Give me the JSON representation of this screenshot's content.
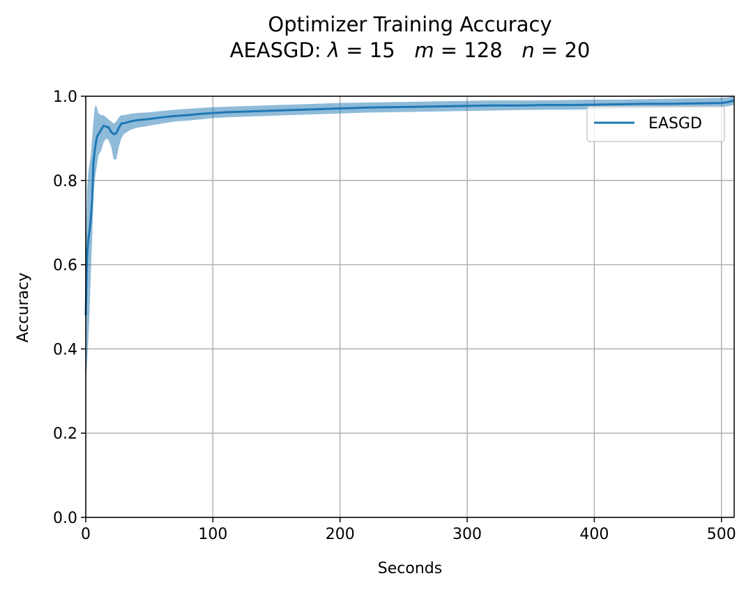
{
  "chart_data": {
    "type": "line",
    "title": "Optimizer Training Accuracy",
    "subtitle_parts": [
      {
        "text": "AEASGD: ",
        "italic": false
      },
      {
        "text": "λ",
        "italic": true
      },
      {
        "text": " = 15   ",
        "italic": false
      },
      {
        "text": "m",
        "italic": true
      },
      {
        "text": " = 128   ",
        "italic": false
      },
      {
        "text": "n",
        "italic": true
      },
      {
        "text": " = 20",
        "italic": false
      }
    ],
    "xlabel": "Seconds",
    "ylabel": "Accuracy",
    "xlim": [
      0,
      510
    ],
    "ylim": [
      0.0,
      1.0
    ],
    "xticks": [
      0,
      100,
      200,
      300,
      400,
      500
    ],
    "xtick_labels": [
      "0",
      "100",
      "200",
      "300",
      "400",
      "500"
    ],
    "yticks": [
      0.0,
      0.2,
      0.4,
      0.6,
      0.8,
      1.0
    ],
    "ytick_labels": [
      "0.0",
      "0.2",
      "0.4",
      "0.6",
      "0.8",
      "1.0"
    ],
    "grid": true,
    "legend_position": "top-right",
    "series": [
      {
        "name": "EASGD",
        "color": "#1f77b4",
        "band_color": "#1f77b4",
        "x": [
          0,
          1,
          2,
          3,
          4,
          5,
          6,
          7,
          8,
          9,
          10,
          12,
          14,
          16,
          18,
          20,
          22,
          24,
          26,
          28,
          30,
          35,
          40,
          50,
          60,
          70,
          80,
          90,
          100,
          110,
          120,
          130,
          140,
          150,
          160,
          170,
          180,
          190,
          200,
          220,
          240,
          260,
          280,
          300,
          320,
          340,
          360,
          380,
          400,
          420,
          440,
          460,
          480,
          500,
          505,
          510
        ],
        "y": [
          0.48,
          0.62,
          0.66,
          0.68,
          0.71,
          0.75,
          0.84,
          0.87,
          0.89,
          0.905,
          0.91,
          0.92,
          0.93,
          0.928,
          0.926,
          0.915,
          0.91,
          0.912,
          0.925,
          0.935,
          0.936,
          0.94,
          0.943,
          0.946,
          0.95,
          0.953,
          0.955,
          0.958,
          0.96,
          0.962,
          0.963,
          0.964,
          0.965,
          0.966,
          0.967,
          0.968,
          0.969,
          0.97,
          0.971,
          0.973,
          0.974,
          0.975,
          0.976,
          0.977,
          0.978,
          0.978,
          0.979,
          0.979,
          0.98,
          0.981,
          0.982,
          0.982,
          0.983,
          0.984,
          0.986,
          0.99
        ],
        "lower": [
          0.32,
          0.36,
          0.42,
          0.49,
          0.58,
          0.66,
          0.76,
          0.8,
          0.82,
          0.84,
          0.86,
          0.87,
          0.89,
          0.9,
          0.895,
          0.88,
          0.85,
          0.85,
          0.88,
          0.9,
          0.91,
          0.92,
          0.925,
          0.93,
          0.935,
          0.94,
          0.942,
          0.945,
          0.948,
          0.95,
          0.951,
          0.952,
          0.953,
          0.954,
          0.955,
          0.956,
          0.957,
          0.958,
          0.959,
          0.961,
          0.962,
          0.963,
          0.964,
          0.965,
          0.966,
          0.967,
          0.968,
          0.968,
          0.969,
          0.97,
          0.971,
          0.972,
          0.973,
          0.974,
          0.976,
          0.98
        ],
        "upper": [
          0.62,
          0.78,
          0.82,
          0.84,
          0.86,
          0.9,
          0.94,
          0.97,
          0.98,
          0.97,
          0.96,
          0.955,
          0.955,
          0.95,
          0.945,
          0.94,
          0.935,
          0.94,
          0.95,
          0.955,
          0.955,
          0.958,
          0.96,
          0.962,
          0.965,
          0.968,
          0.97,
          0.972,
          0.974,
          0.975,
          0.976,
          0.977,
          0.978,
          0.979,
          0.98,
          0.981,
          0.982,
          0.983,
          0.984,
          0.985,
          0.986,
          0.987,
          0.988,
          0.989,
          0.99,
          0.99,
          0.99,
          0.991,
          0.992,
          0.992,
          0.993,
          0.994,
          0.995,
          0.996,
          0.997,
          1.0
        ]
      }
    ]
  }
}
